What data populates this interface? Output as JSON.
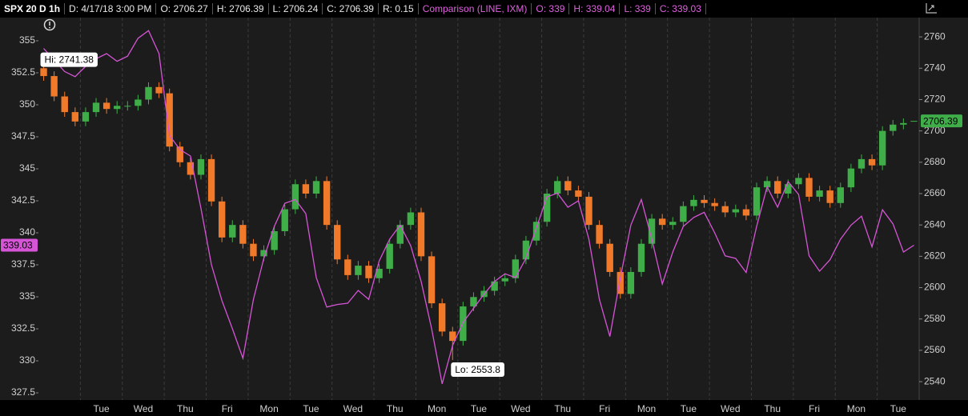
{
  "chart_data": {
    "type": "candlestick",
    "title": "SPX 20 D 1h",
    "header": [
      "D: 4/17/18 3:00 PM",
      "O: 2706.27",
      "H: 2706.39",
      "L: 2706.24",
      "C: 2706.39",
      "R: 0.15"
    ],
    "comparison_header": [
      "O: 339",
      "H: 339.04",
      "L: 339",
      "C: 339.03"
    ],
    "annotations": {
      "high": "Hi: 2741.38",
      "low": "Lo: 2553.8"
    },
    "up_color": "#3fae49",
    "down_color": "#f07a2a",
    "categories": [
      null,
      null,
      null,
      null,
      null,
      "Tue",
      null,
      null,
      null,
      "Wed",
      null,
      null,
      null,
      "Thu",
      null,
      null,
      null,
      "Fri",
      null,
      null,
      null,
      "Mon",
      null,
      null,
      null,
      "Tue",
      null,
      null,
      null,
      "Wed",
      null,
      null,
      null,
      "Thu",
      null,
      null,
      null,
      "Mon",
      null,
      null,
      null,
      "Tue",
      null,
      null,
      null,
      "Wed",
      null,
      null,
      null,
      "Thu",
      null,
      null,
      null,
      "Fri",
      null,
      null,
      null,
      "Mon",
      null,
      null,
      null,
      "Tue",
      null,
      null,
      null,
      "Wed",
      null,
      null,
      null,
      "Thu",
      null,
      null,
      null,
      "Fri",
      null,
      null,
      null,
      "Mon",
      null,
      null,
      null,
      "Tue",
      null,
      null
    ],
    "open": [
      2740,
      2735,
      2722,
      2712,
      2706,
      2712,
      2718,
      2714,
      2716,
      2716,
      2720,
      2728,
      2724,
      2690,
      2680,
      2672,
      2682,
      2655,
      2632,
      2640,
      2628,
      2620,
      2624,
      2636,
      2650,
      2666,
      2660,
      2668,
      2640,
      2618,
      2608,
      2614,
      2606,
      2612,
      2628,
      2640,
      2648,
      2620,
      2590,
      2572,
      2566,
      2588,
      2594,
      2598,
      2604,
      2606,
      2618,
      2630,
      2642,
      2660,
      2668,
      2662,
      2658,
      2640,
      2628,
      2610,
      2596,
      2610,
      2628,
      2644,
      2640,
      2642,
      2652,
      2656,
      2654,
      2652,
      2648,
      2650,
      2646,
      2664,
      2668,
      2660,
      2666,
      2670,
      2658,
      2662,
      2654,
      2664,
      2676,
      2682,
      2678,
      2700,
      2704,
      2706.27
    ],
    "high": [
      2741.38,
      2738,
      2725,
      2715,
      2715,
      2721,
      2721,
      2719,
      2719,
      2723,
      2731,
      2731,
      2727,
      2693,
      2683,
      2685,
      2685,
      2658,
      2643,
      2643,
      2631,
      2627,
      2639,
      2653,
      2669,
      2669,
      2671,
      2671,
      2643,
      2621,
      2617,
      2617,
      2615,
      2631,
      2643,
      2651,
      2651,
      2623,
      2593,
      2575,
      2591,
      2597,
      2601,
      2607,
      2609,
      2621,
      2633,
      2645,
      2663,
      2671,
      2671,
      2665,
      2661,
      2643,
      2631,
      2613,
      2613,
      2631,
      2647,
      2647,
      2645,
      2655,
      2659,
      2659,
      2657,
      2655,
      2653,
      2653,
      2667,
      2671,
      2671,
      2669,
      2673,
      2673,
      2665,
      2665,
      2667,
      2679,
      2685,
      2685,
      2703,
      2707,
      2708,
      2706.39
    ],
    "low": [
      2732,
      2719,
      2709,
      2703,
      2703,
      2709,
      2711,
      2711,
      2713,
      2713,
      2717,
      2721,
      2687,
      2677,
      2669,
      2669,
      2652,
      2629,
      2629,
      2625,
      2617,
      2617,
      2621,
      2633,
      2647,
      2657,
      2657,
      2637,
      2615,
      2605,
      2605,
      2603,
      2603,
      2609,
      2625,
      2637,
      2617,
      2587,
      2569,
      2553.8,
      2563,
      2585,
      2591,
      2595,
      2601,
      2603,
      2615,
      2627,
      2639,
      2657,
      2659,
      2655,
      2637,
      2625,
      2607,
      2593,
      2593,
      2607,
      2625,
      2637,
      2637,
      2639,
      2649,
      2651,
      2649,
      2645,
      2645,
      2643,
      2643,
      2661,
      2657,
      2657,
      2663,
      2655,
      2655,
      2651,
      2651,
      2661,
      2673,
      2675,
      2675,
      2697,
      2701,
      2706.24
    ],
    "close": [
      2735,
      2722,
      2712,
      2706,
      2712,
      2718,
      2714,
      2716,
      2716,
      2720,
      2728,
      2724,
      2690,
      2680,
      2672,
      2682,
      2655,
      2632,
      2640,
      2628,
      2620,
      2624,
      2636,
      2650,
      2666,
      2660,
      2668,
      2640,
      2618,
      2608,
      2614,
      2606,
      2612,
      2628,
      2640,
      2648,
      2620,
      2590,
      2572,
      2566,
      2588,
      2594,
      2598,
      2604,
      2606,
      2618,
      2630,
      2642,
      2660,
      2668,
      2662,
      2658,
      2640,
      2628,
      2610,
      2596,
      2610,
      2628,
      2644,
      2640,
      2642,
      2652,
      2656,
      2654,
      2652,
      2648,
      2650,
      2646,
      2664,
      2668,
      2660,
      2666,
      2670,
      2658,
      2662,
      2654,
      2664,
      2676,
      2682,
      2678,
      2700,
      2704,
      2705,
      2706.39
    ],
    "comparison": {
      "name": "Comparison (LINE, IXM)",
      "color": "#d655d6",
      "axis": "y2",
      "values": [
        354.4,
        353.5,
        352.6,
        352.2,
        353.0,
        353.6,
        354.0,
        353.4,
        353.8,
        355.2,
        355.8,
        354,
        347.6,
        346.5,
        346.0,
        341.9,
        337.5,
        334.7,
        332.5,
        330.2,
        334.8,
        338.0,
        340.5,
        342.3,
        342.6,
        341.5,
        336.5,
        334.2,
        334.4,
        334.5,
        335.5,
        334.8,
        337.8,
        339.5,
        340.6,
        339,
        336.2,
        332.5,
        328.2,
        331.2,
        333.0,
        334.1,
        335.2,
        336.2,
        336.8,
        336.5,
        338.0,
        340.4,
        342.8,
        343.1,
        342.0,
        342.5,
        339.5,
        334.8,
        331.9,
        336.5,
        340.6,
        342.6,
        339.5,
        336.0,
        338.5,
        340.5,
        341.2,
        341.6,
        340.0,
        338.2,
        338.0,
        336.9,
        340.5,
        343.6,
        342.0,
        344.0,
        343.0,
        338.2,
        337.0,
        337.9,
        339.5,
        340.6,
        341.3,
        338.9,
        341.8,
        340.7,
        338.5,
        339.03
      ]
    },
    "ylim": [
      2528.3,
      2772.3
    ],
    "yticks": [
      2540,
      2560,
      2580,
      2600,
      2620,
      2640,
      2660,
      2680,
      2700,
      2720,
      2740,
      2760
    ],
    "y2lim": [
      326.94,
      356.81
    ],
    "y2ticks": [
      327.5,
      330,
      332.5,
      335,
      337.5,
      340,
      342.5,
      345,
      347.5,
      350,
      352.5,
      355
    ]
  }
}
